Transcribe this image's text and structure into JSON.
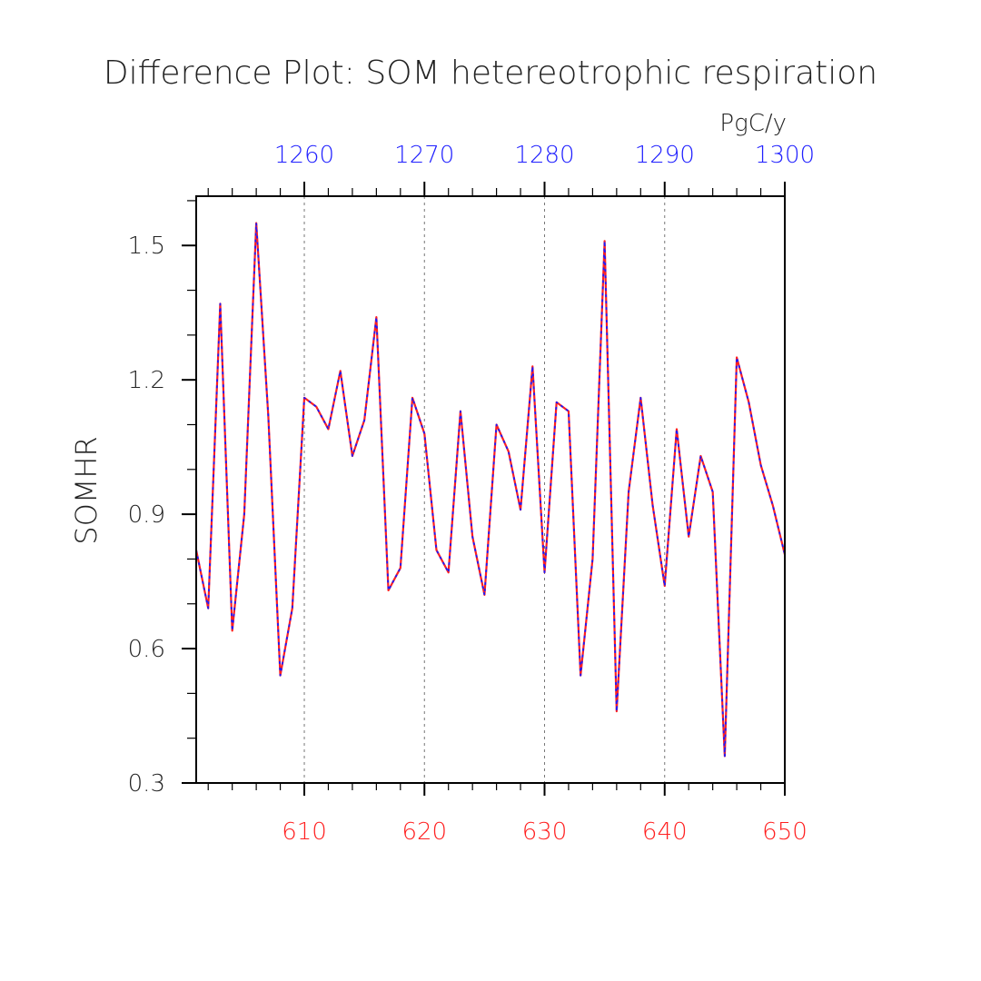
{
  "chart_data": {
    "type": "line",
    "title": "Difference Plot: SOM hetereotrophic respiration",
    "units": "PgC/y",
    "ylabel": "SOMHR",
    "xlabel": "",
    "xlim": [
      601,
      650
    ],
    "ylim": [
      0.3,
      1.61
    ],
    "top_xlim": [
      1251,
      1300
    ],
    "yticks": [
      0.3,
      0.6,
      0.9,
      1.2,
      1.5
    ],
    "ytick_labels": [
      "0.3",
      "0.6",
      "0.9",
      "1.2",
      "1.5"
    ],
    "xticks_bottom": [
      610,
      620,
      630,
      640,
      650
    ],
    "xtick_labels_bottom": [
      "610",
      "620",
      "630",
      "640",
      "650"
    ],
    "xticks_top": [
      1260,
      1270,
      1280,
      1290,
      1300
    ],
    "xtick_labels_top": [
      "1260",
      "1270",
      "1280",
      "1290",
      "1300"
    ],
    "vgrid_dashed_at": [
      610,
      620,
      630,
      640
    ],
    "series": [
      {
        "name": "difference",
        "color": "#ff2020",
        "overlay_color": "#1a1aff",
        "x": [
          601,
          602,
          603,
          604,
          605,
          606,
          607,
          608,
          609,
          610,
          611,
          612,
          613,
          614,
          615,
          616,
          617,
          618,
          619,
          620,
          621,
          622,
          623,
          624,
          625,
          626,
          627,
          628,
          629,
          630,
          631,
          632,
          633,
          634,
          635,
          636,
          637,
          638,
          639,
          640,
          641,
          642,
          643,
          644,
          645,
          646,
          647,
          648,
          649,
          650
        ],
        "values": [
          0.82,
          0.69,
          1.37,
          0.64,
          0.9,
          1.55,
          1.12,
          0.54,
          0.69,
          1.16,
          1.14,
          1.09,
          1.22,
          1.03,
          1.11,
          1.34,
          0.73,
          0.78,
          1.16,
          1.08,
          0.82,
          0.77,
          1.13,
          0.85,
          0.72,
          1.1,
          1.04,
          0.91,
          1.23,
          0.77,
          1.15,
          1.13,
          0.54,
          0.8,
          1.51,
          0.46,
          0.95,
          1.16,
          0.92,
          0.74,
          1.09,
          0.85,
          1.03,
          0.95,
          0.36,
          1.25,
          1.15,
          1.01,
          0.92,
          0.81
        ]
      }
    ]
  }
}
